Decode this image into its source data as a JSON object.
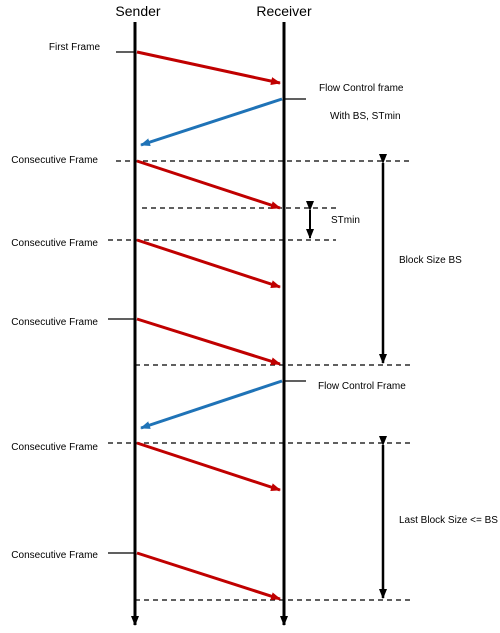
{
  "header": {
    "sender": "Sender",
    "receiver": "Receiver"
  },
  "frames": {
    "first": "First Frame",
    "flow_control_1_line1": "Flow Control frame",
    "flow_control_1_line2": "With BS, STmin",
    "consecutive_1": "Consecutive Frame",
    "consecutive_2": "Consecutive Frame",
    "consecutive_3": "Consecutive Frame",
    "flow_control_2": "Flow Control Frame",
    "consecutive_4": "Consecutive Frame",
    "consecutive_5": "Consecutive Frame"
  },
  "annotations": {
    "stmin": "STmin",
    "block_size": "Block Size BS",
    "last_block_size": "Last Block Size <= BS"
  },
  "colors": {
    "sender_to_receiver": "#c00000",
    "receiver_to_sender": "#1f73b7",
    "lines": "#000000"
  }
}
